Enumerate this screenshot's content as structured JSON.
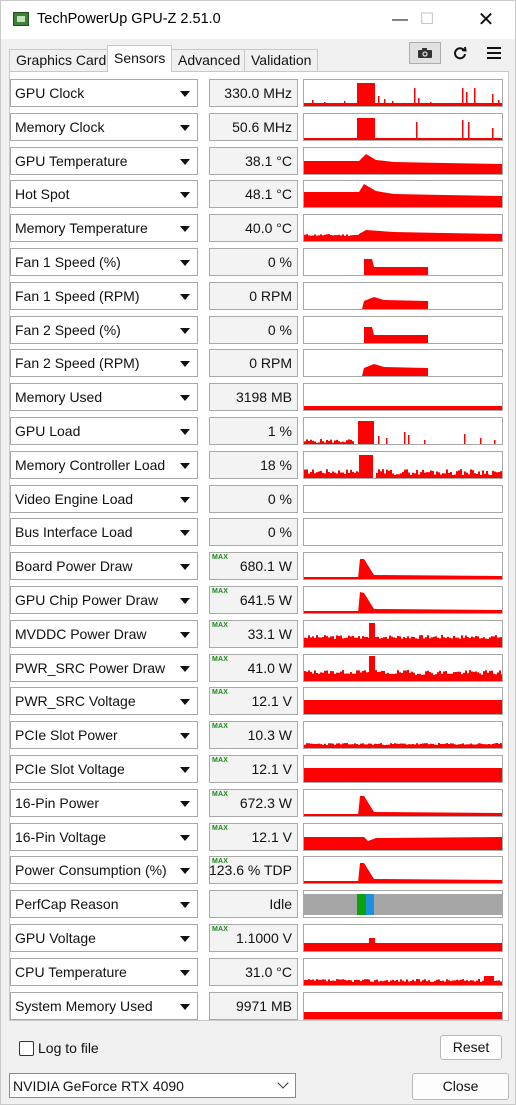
{
  "window": {
    "title": "TechPowerUp GPU-Z 2.51.0",
    "controls": {
      "minimize": "—",
      "maximize": "☐",
      "close": "✕"
    }
  },
  "tabs": [
    {
      "label": "Graphics Card",
      "active": false
    },
    {
      "label": "Sensors",
      "active": true
    },
    {
      "label": "Advanced",
      "active": false
    },
    {
      "label": "Validation",
      "active": false
    }
  ],
  "toolbar": {
    "camera_icon": "camera-icon",
    "refresh_icon": "refresh-icon",
    "menu_icon": "menu-icon"
  },
  "colors": {
    "graph": "#ff0000",
    "perfcap_idle": "#a6a6a6",
    "perfcap_green": "#0da10d",
    "perfcap_blue": "#1e8fdf",
    "max_tag": "#1a8a1a"
  },
  "max_label": "MAX",
  "sensors": [
    {
      "name": "GPU Clock",
      "value": "330.0 MHz",
      "max": false
    },
    {
      "name": "Memory Clock",
      "value": "50.6 MHz",
      "max": false
    },
    {
      "name": "GPU Temperature",
      "value": "38.1 °C",
      "max": false
    },
    {
      "name": "Hot Spot",
      "value": "48.1 °C",
      "max": false
    },
    {
      "name": "Memory Temperature",
      "value": "40.0 °C",
      "max": false
    },
    {
      "name": "Fan 1 Speed (%)",
      "value": "0 %",
      "max": false
    },
    {
      "name": "Fan 1 Speed (RPM)",
      "value": "0 RPM",
      "max": false
    },
    {
      "name": "Fan 2 Speed (%)",
      "value": "0 %",
      "max": false
    },
    {
      "name": "Fan 2 Speed (RPM)",
      "value": "0 RPM",
      "max": false
    },
    {
      "name": "Memory Used",
      "value": "3198 MB",
      "max": false
    },
    {
      "name": "GPU Load",
      "value": "1 %",
      "max": false
    },
    {
      "name": "Memory Controller Load",
      "value": "18 %",
      "max": false
    },
    {
      "name": "Video Engine Load",
      "value": "0 %",
      "max": false
    },
    {
      "name": "Bus Interface Load",
      "value": "0 %",
      "max": false
    },
    {
      "name": "Board Power Draw",
      "value": "680.1 W",
      "max": true
    },
    {
      "name": "GPU Chip Power Draw",
      "value": "641.5 W",
      "max": true
    },
    {
      "name": "MVDDC Power Draw",
      "value": "33.1 W",
      "max": true
    },
    {
      "name": "PWR_SRC Power Draw",
      "value": "41.0 W",
      "max": true
    },
    {
      "name": "PWR_SRC Voltage",
      "value": "12.1 V",
      "max": true
    },
    {
      "name": "PCIe Slot Power",
      "value": "10.3 W",
      "max": true
    },
    {
      "name": "PCIe Slot Voltage",
      "value": "12.1 V",
      "max": true
    },
    {
      "name": "16-Pin Power",
      "value": "672.3 W",
      "max": true
    },
    {
      "name": "16-Pin Voltage",
      "value": "12.1 V",
      "max": true
    },
    {
      "name": "Power Consumption (%)",
      "value": "123.6 % TDP",
      "max": true
    },
    {
      "name": "PerfCap Reason",
      "value": "Idle",
      "max": false
    },
    {
      "name": "GPU Voltage",
      "value": "1.1000 V",
      "max": true
    },
    {
      "name": "CPU Temperature",
      "value": "31.0 °C",
      "max": false
    },
    {
      "name": "System Memory Used",
      "value": "9971 MB",
      "max": false
    }
  ],
  "footer": {
    "log_to_file_label": "Log to file",
    "log_to_file_checked": false,
    "reset_label": "Reset",
    "gpu_selected": "NVIDIA GeForce RTX 4090",
    "close_label": "Close"
  }
}
